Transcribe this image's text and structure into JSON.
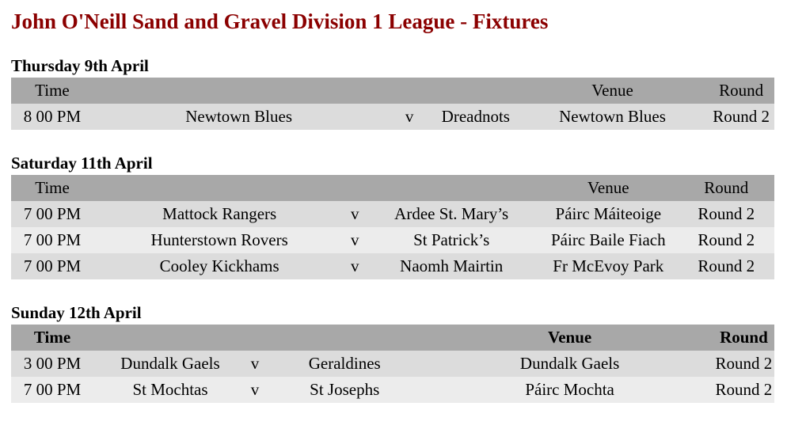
{
  "title": "John O'Neill Sand and Gravel Division 1 League - Fixtures",
  "columns": {
    "time": "Time",
    "venue": "Venue",
    "round": "Round"
  },
  "colors": {
    "title_text": "#8B0000",
    "table_header_bg": "#A8A8A8",
    "row_alt_dark": "#DCDCDC",
    "row_alt_light": "#ECECEC"
  },
  "sections": [
    {
      "day": "Thursday 9th April",
      "fixtures": [
        {
          "time": "8 00 PM",
          "home": "Newtown Blues",
          "versus": "v",
          "away": "Dreadnots",
          "venue": "Newtown Blues",
          "round": "Round 2"
        }
      ]
    },
    {
      "day": "Saturday 11th April",
      "fixtures": [
        {
          "time": "7 00 PM",
          "home": "Mattock Rangers",
          "versus": "v",
          "away": "Ardee St. Mary’s",
          "venue": "Páirc Máiteoige",
          "round": "Round 2"
        },
        {
          "time": "7 00 PM",
          "home": "Hunterstown Rovers",
          "versus": "v",
          "away": "St Patrick’s",
          "venue": "Páirc Baile Fiach",
          "round": "Round 2"
        },
        {
          "time": "7 00 PM",
          "home": "Cooley Kickhams",
          "versus": "v",
          "away": "Naomh Mairtin",
          "venue": "Fr McEvoy Park",
          "round": "Round 2"
        }
      ]
    },
    {
      "day": "Sunday 12th April",
      "fixtures": [
        {
          "time": "3 00 PM",
          "home": "Dundalk Gaels",
          "versus": "v",
          "away": "Geraldines",
          "venue": "Dundalk Gaels",
          "round": "Round 2"
        },
        {
          "time": "7 00 PM",
          "home": "St Mochtas",
          "versus": "v",
          "away": "St Josephs",
          "venue": "Páirc Mochta",
          "round": "Round 2"
        }
      ]
    }
  ]
}
